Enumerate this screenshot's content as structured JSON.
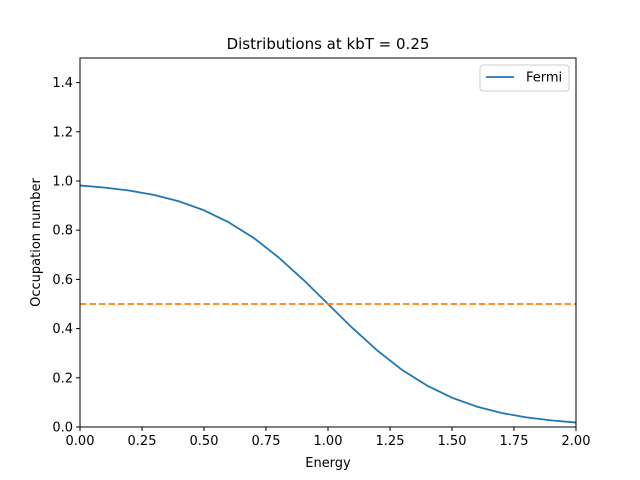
{
  "chart_data": {
    "type": "line",
    "title": "Distributions at kbT = 0.25",
    "xlabel": "Energy",
    "ylabel": "Occupation number",
    "xlim": [
      0.0,
      2.0
    ],
    "ylim": [
      0.0,
      1.5
    ],
    "xticks": [
      "0.00",
      "0.25",
      "0.50",
      "0.75",
      "1.00",
      "1.25",
      "1.50",
      "1.75",
      "2.00"
    ],
    "yticks": [
      "0.0",
      "0.2",
      "0.4",
      "0.6",
      "0.8",
      "1.0",
      "1.2",
      "1.4"
    ],
    "grid": false,
    "legend_position": "upper right",
    "series": [
      {
        "name": "Fermi",
        "color": "#1f77b4",
        "style": "solid",
        "in_legend": true,
        "x": [
          0.0,
          0.1,
          0.2,
          0.3,
          0.4,
          0.5,
          0.6,
          0.7,
          0.8,
          0.9,
          1.0,
          1.1,
          1.2,
          1.3,
          1.4,
          1.5,
          1.6,
          1.7,
          1.8,
          1.9,
          2.0
        ],
        "y": [
          0.982,
          0.973,
          0.961,
          0.943,
          0.917,
          0.881,
          0.832,
          0.769,
          0.69,
          0.599,
          0.5,
          0.401,
          0.31,
          0.231,
          0.168,
          0.119,
          0.083,
          0.057,
          0.039,
          0.027,
          0.018
        ]
      },
      {
        "name": "",
        "color": "#ff7f0e",
        "style": "dashed",
        "in_legend": false,
        "x": [
          0.0,
          2.0
        ],
        "y": [
          0.5,
          0.5
        ]
      }
    ]
  }
}
